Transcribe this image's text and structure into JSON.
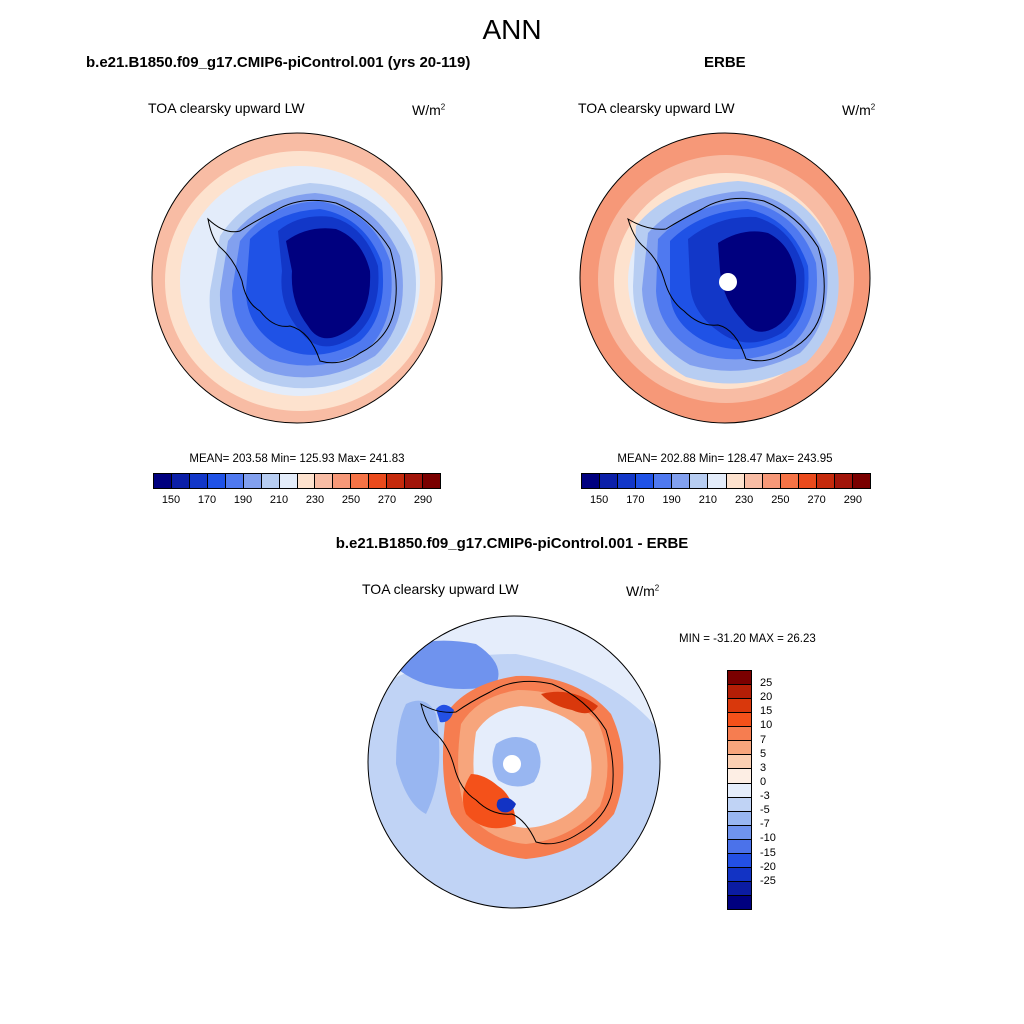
{
  "suptitle": "ANN",
  "panels": {
    "model": {
      "case_title": "b.e21.B1850.f09_g17.CMIP6-piControl.001 (yrs 20-119)",
      "var_title": "TOA clearsky upward LW",
      "units_base": "W/m",
      "units_exp": "2",
      "stats": "MEAN= 203.58  Min= 125.93  Max= 241.83"
    },
    "obs": {
      "case_title": "ERBE",
      "var_title": "TOA clearsky upward LW",
      "units_base": "W/m",
      "units_exp": "2",
      "stats": "MEAN= 202.88  Min= 128.47  Max= 243.95"
    },
    "diff": {
      "case_title": "b.e21.B1850.f09_g17.CMIP6-piControl.001 - ERBE",
      "var_title": "TOA clearsky upward LW",
      "units_base": "W/m",
      "units_exp": "2",
      "stats": "MIN = -31.20 MAX =  26.23"
    }
  },
  "colorbar_main": {
    "colors": [
      "#00007f",
      "#0b1fa8",
      "#1237c8",
      "#1f52e6",
      "#4f79f0",
      "#82a0ef",
      "#b7cdf2",
      "#e3ecfa",
      "#fde2ce",
      "#f8bca4",
      "#f69878",
      "#f57346",
      "#ea4a1c",
      "#c52a0c",
      "#a2150a",
      "#7a0000"
    ],
    "labels": [
      "150",
      "170",
      "190",
      "210",
      "230",
      "250",
      "270",
      "290"
    ]
  },
  "colorbar_diff": {
    "colors": [
      "#7a0000",
      "#b31e06",
      "#d9380c",
      "#f4511a",
      "#f67d50",
      "#f7a57c",
      "#fbcfb2",
      "#fdeee4",
      "#e5edfb",
      "#c0d3f5",
      "#98b6f1",
      "#6f93ee",
      "#4b72ea",
      "#2350e4",
      "#1233c4",
      "#0b1ca2",
      "#00007f"
    ],
    "labels": [
      "25",
      "20",
      "15",
      "10",
      "7",
      "5",
      "3",
      "0",
      "-3",
      "-5",
      "-7",
      "-10",
      "-15",
      "-20",
      "-25"
    ]
  },
  "chart_data": [
    {
      "type": "heatmap",
      "title": "TOA clearsky upward LW",
      "units": "W/m2",
      "projection": "south polar stereographic",
      "mean": 203.58,
      "min": 125.93,
      "max": 241.83,
      "contour_levels": [
        150,
        170,
        190,
        210,
        230,
        250,
        270,
        290
      ]
    },
    {
      "type": "heatmap",
      "title": "TOA clearsky upward LW",
      "units": "W/m2",
      "projection": "south polar stereographic",
      "mean": 202.88,
      "min": 128.47,
      "max": 243.95,
      "contour_levels": [
        150,
        170,
        190,
        210,
        230,
        250,
        270,
        290
      ]
    },
    {
      "type": "heatmap",
      "title": "TOA clearsky upward LW",
      "units": "W/m2",
      "projection": "south polar stereographic",
      "min": -31.2,
      "max": 26.23,
      "contour_levels": [
        -25,
        -20,
        -15,
        -10,
        -7,
        -5,
        -3,
        0,
        3,
        5,
        7,
        10,
        15,
        20,
        25
      ]
    }
  ]
}
